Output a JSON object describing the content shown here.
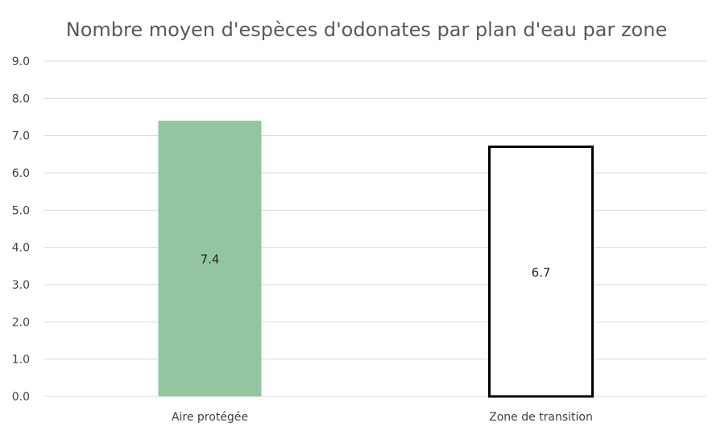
{
  "chart_data": {
    "type": "bar",
    "title": "Nombre moyen d'espèces d'odonates par plan d'eau par zone",
    "xlabel": "",
    "ylabel": "",
    "categories": [
      "Aire protégée",
      "Zone de transition"
    ],
    "values": [
      7.4,
      6.7
    ],
    "data_labels": [
      "7.4",
      "6.7"
    ],
    "ylim": [
      0,
      9
    ],
    "y_ticks": [
      "0.0",
      "1.0",
      "2.0",
      "3.0",
      "4.0",
      "5.0",
      "6.0",
      "7.0",
      "8.0",
      "9.0"
    ],
    "grid": true,
    "legend": "none",
    "bar_styles": [
      {
        "fill": "#93c6a0",
        "stroke": "none"
      },
      {
        "fill": "#ffffff",
        "stroke": "#000000"
      }
    ],
    "colors": {
      "gridline": "#d9d9d9",
      "title": "#595959",
      "tick": "#404040"
    }
  }
}
